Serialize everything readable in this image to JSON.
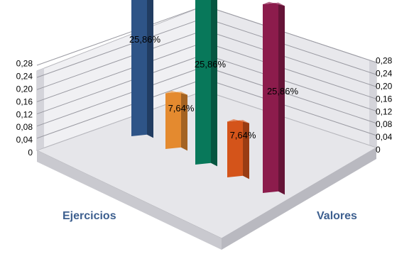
{
  "chart_data": {
    "type": "bar",
    "title": "",
    "xlabel": "Ejercicios",
    "zlabel": "Valores",
    "ylim": [
      0,
      0.28
    ],
    "y_ticks": [
      "0",
      "0,04",
      "0,08",
      "0,12",
      "0,16",
      "0,20",
      "0,24",
      "0,28"
    ],
    "grid": true,
    "bars": [
      {
        "value": 0.2586,
        "label": "25,86%",
        "color": "#2e5487"
      },
      {
        "value": 0.0764,
        "label": "7,64%",
        "color": "#e48a2f"
      },
      {
        "value": 0.2586,
        "label": "25,86%",
        "color": "#08785a"
      },
      {
        "value": 0.0764,
        "label": "7,64%",
        "color": "#d4541a"
      },
      {
        "value": 0.2586,
        "label": "25,86%",
        "color": "#8c1c4c"
      }
    ]
  }
}
